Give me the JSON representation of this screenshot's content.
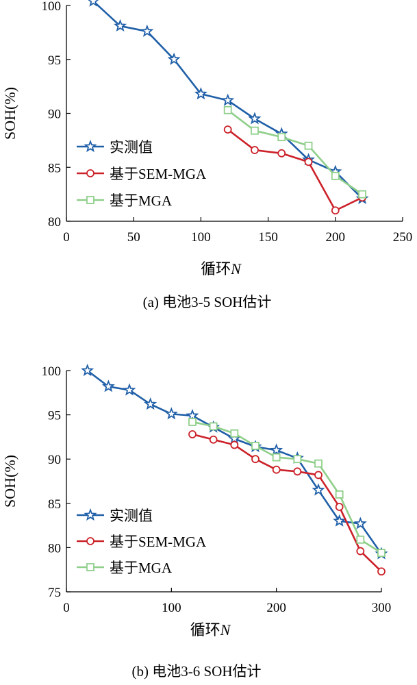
{
  "colors": {
    "measured": "#1f5fa8",
    "sem_mga": "#cc2129",
    "mga": "#8fcf8a",
    "axis": "#000000"
  },
  "chart_data": [
    {
      "type": "line",
      "caption": "(a) 电池3-5 SOH估计",
      "xlabel": "循环",
      "xlabel_var": "N",
      "ylabel": "SOH(%)",
      "xlim": [
        0,
        250
      ],
      "ylim": [
        80,
        100
      ],
      "xticks": [
        "0",
        "50",
        "100",
        "150",
        "200",
        "250"
      ],
      "yticks": [
        "80",
        "85",
        "90",
        "95",
        "100"
      ],
      "xtick_values": [
        0,
        50,
        100,
        150,
        200,
        250
      ],
      "ytick_values": [
        80,
        85,
        90,
        95,
        100
      ],
      "legend_position": "bottom-left",
      "series": [
        {
          "name": "实测值",
          "marker": "star",
          "color_key": "measured",
          "x": [
            20,
            40,
            60,
            80,
            100,
            120,
            140,
            160,
            180,
            200,
            220
          ],
          "y": [
            100.4,
            98.1,
            97.6,
            95.0,
            91.8,
            91.2,
            89.5,
            88.1,
            85.7,
            84.6,
            82.1
          ]
        },
        {
          "name": "基于SEM-MGA",
          "marker": "circle",
          "color_key": "sem_mga",
          "x": [
            120,
            140,
            160,
            180,
            200,
            220
          ],
          "y": [
            88.5,
            86.6,
            86.3,
            85.5,
            81.0,
            82.2
          ]
        },
        {
          "name": "基于MGA",
          "marker": "square",
          "color_key": "mga",
          "x": [
            120,
            140,
            160,
            180,
            200,
            220
          ],
          "y": [
            90.3,
            88.4,
            87.8,
            87.0,
            84.2,
            82.5
          ]
        }
      ]
    },
    {
      "type": "line",
      "caption": "(b) 电池3-6 SOH估计",
      "xlabel": "循环",
      "xlabel_var": "N",
      "ylabel": "SOH(%)",
      "xlim": [
        0,
        300
      ],
      "ylim": [
        75,
        100
      ],
      "xticks": [
        "0",
        "100",
        "200",
        "300"
      ],
      "yticks": [
        "75",
        "80",
        "85",
        "90",
        "95",
        "100"
      ],
      "xtick_values": [
        0,
        100,
        200,
        300
      ],
      "ytick_values": [
        75,
        80,
        85,
        90,
        95,
        100
      ],
      "legend_position": "bottom-left",
      "series": [
        {
          "name": "实测值",
          "marker": "star",
          "color_key": "measured",
          "x": [
            20,
            40,
            60,
            80,
            100,
            120,
            140,
            160,
            180,
            200,
            220,
            240,
            260,
            280,
            300
          ],
          "y": [
            100.0,
            98.2,
            97.8,
            96.2,
            95.1,
            94.9,
            93.6,
            92.3,
            91.4,
            91.0,
            90.1,
            86.5,
            83.0,
            82.7,
            79.3
          ]
        },
        {
          "name": "基于SEM-MGA",
          "marker": "circle",
          "color_key": "sem_mga",
          "x": [
            120,
            140,
            160,
            180,
            200,
            220,
            240,
            260,
            280,
            300
          ],
          "y": [
            92.8,
            92.2,
            91.6,
            90.0,
            88.8,
            88.6,
            88.2,
            84.6,
            79.6,
            77.3
          ]
        },
        {
          "name": "基于MGA",
          "marker": "square",
          "color_key": "mga",
          "x": [
            120,
            140,
            160,
            180,
            200,
            220,
            240,
            260,
            280,
            300
          ],
          "y": [
            94.2,
            93.7,
            92.9,
            91.5,
            90.2,
            90.0,
            89.5,
            86.0,
            80.9,
            79.4
          ]
        }
      ]
    }
  ]
}
